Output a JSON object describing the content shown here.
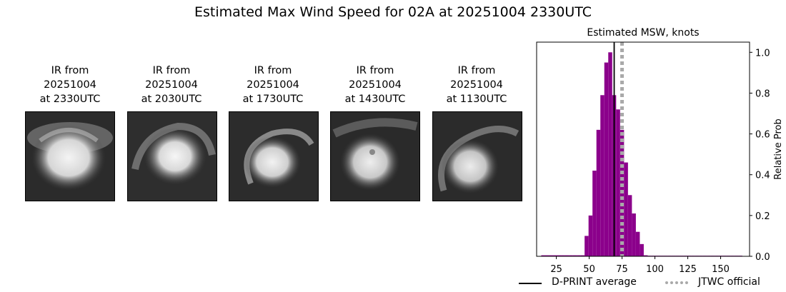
{
  "title": "Estimated Max Wind Speed for 02A at 20251004 2330UTC",
  "panels": [
    {
      "caption": "IR from\n20251004\nat 2330UTC"
    },
    {
      "caption": "IR from\n20251004\nat 2030UTC"
    },
    {
      "caption": "IR from\n20251004\nat 1730UTC"
    },
    {
      "caption": "IR from\n20251004\nat 1430UTC"
    },
    {
      "caption": "IR from\n20251004\nat 1130UTC"
    }
  ],
  "chart_data": {
    "type": "bar",
    "title": "Estimated MSW, knots",
    "xlabel": "",
    "ylabel": "Relative Prob",
    "xlim": [
      10,
      172
    ],
    "ylim": [
      0,
      1.05
    ],
    "x_ticks": [
      25,
      50,
      75,
      100,
      125,
      150
    ],
    "y_ticks": [
      0.0,
      0.2,
      0.4,
      0.6,
      0.8,
      1.0
    ],
    "y_tick_labels": [
      "0.0",
      "0.2",
      "0.4",
      "0.6",
      "0.8",
      "1.0"
    ],
    "y_axis_side": "right",
    "bin_width": 3,
    "bins": [
      {
        "x": 15,
        "value": 0.005
      },
      {
        "x": 18,
        "value": 0.005
      },
      {
        "x": 21,
        "value": 0.005
      },
      {
        "x": 24,
        "value": 0.005
      },
      {
        "x": 27,
        "value": 0.005
      },
      {
        "x": 30,
        "value": 0.005
      },
      {
        "x": 33,
        "value": 0.005
      },
      {
        "x": 36,
        "value": 0.005
      },
      {
        "x": 39,
        "value": 0.005
      },
      {
        "x": 42,
        "value": 0.005
      },
      {
        "x": 45,
        "value": 0.005
      },
      {
        "x": 48,
        "value": 0.1
      },
      {
        "x": 51,
        "value": 0.2
      },
      {
        "x": 54,
        "value": 0.42
      },
      {
        "x": 57,
        "value": 0.62
      },
      {
        "x": 60,
        "value": 0.79
      },
      {
        "x": 63,
        "value": 0.95
      },
      {
        "x": 66,
        "value": 1.0
      },
      {
        "x": 69,
        "value": 0.79
      },
      {
        "x": 72,
        "value": 0.72
      },
      {
        "x": 75,
        "value": 0.62
      },
      {
        "x": 78,
        "value": 0.46
      },
      {
        "x": 81,
        "value": 0.3
      },
      {
        "x": 84,
        "value": 0.21
      },
      {
        "x": 87,
        "value": 0.12
      },
      {
        "x": 90,
        "value": 0.06
      },
      {
        "x": 93,
        "value": 0.005
      },
      {
        "x": 96,
        "value": 0.003
      },
      {
        "x": 99,
        "value": 0.003
      },
      {
        "x": 102,
        "value": 0.003
      },
      {
        "x": 105,
        "value": 0.003
      },
      {
        "x": 108,
        "value": 0.003
      },
      {
        "x": 111,
        "value": 0.003
      },
      {
        "x": 114,
        "value": 0.003
      },
      {
        "x": 117,
        "value": 0.003
      },
      {
        "x": 120,
        "value": 0.003
      },
      {
        "x": 123,
        "value": 0.003
      },
      {
        "x": 126,
        "value": 0.003
      },
      {
        "x": 129,
        "value": 0.003
      },
      {
        "x": 132,
        "value": 0.003
      },
      {
        "x": 135,
        "value": 0.003
      },
      {
        "x": 138,
        "value": 0.003
      },
      {
        "x": 141,
        "value": 0.003
      },
      {
        "x": 144,
        "value": 0.003
      },
      {
        "x": 147,
        "value": 0.003
      },
      {
        "x": 150,
        "value": 0.003
      },
      {
        "x": 153,
        "value": 0.003
      },
      {
        "x": 156,
        "value": 0.003
      },
      {
        "x": 159,
        "value": 0.003
      },
      {
        "x": 162,
        "value": 0.003
      },
      {
        "x": 165,
        "value": 0.003
      }
    ],
    "bar_color": "#8b008b",
    "reference_lines": [
      {
        "name": "D-PRINT average",
        "x": 69,
        "style": "solid",
        "color": "#000000"
      },
      {
        "name": "JTWC official",
        "x": 75,
        "style": "dotted",
        "color": "#a9a9a9"
      }
    ],
    "legend_position": "bottom"
  }
}
